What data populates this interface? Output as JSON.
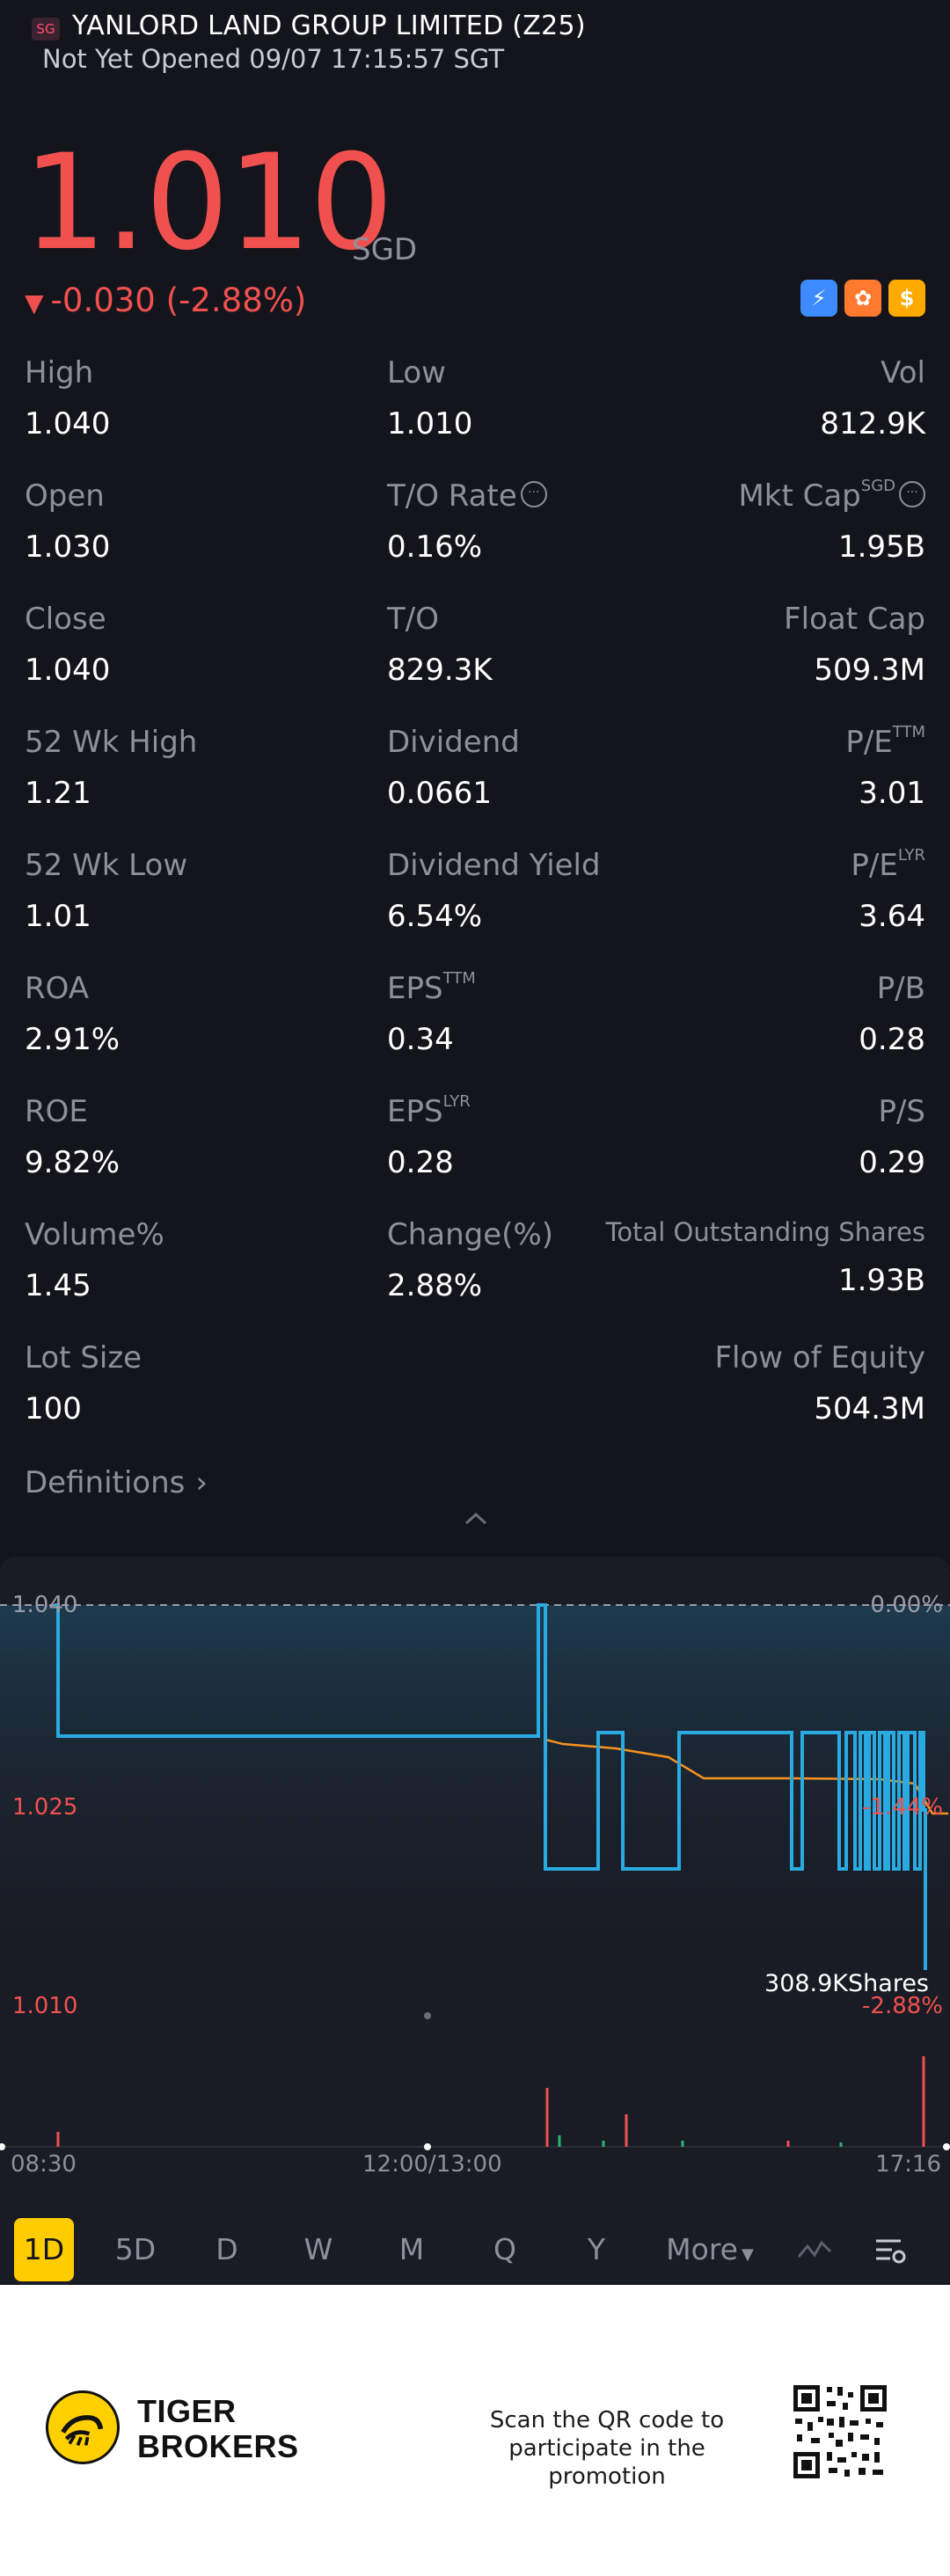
{
  "header": {
    "market_badge": "SG",
    "title": "YANLORD LAND GROUP LIMITED (Z25)",
    "status": "Not Yet Opened 09/07 17:15:57 SGT"
  },
  "quote": {
    "price": "1.010",
    "currency": "SGD",
    "change_arrow": "▼",
    "change": "-0.030 (-2.88%)"
  },
  "quick_icons": [
    {
      "icon": "lightning-level1-icon",
      "glyph": "⚡"
    },
    {
      "icon": "reward-icon",
      "glyph": "✿"
    },
    {
      "icon": "dollar-icon",
      "glyph": "$"
    }
  ],
  "stats": {
    "high": {
      "label": "High",
      "value": "1.040"
    },
    "low": {
      "label": "Low",
      "value": "1.010"
    },
    "vol": {
      "label": "Vol",
      "value": "812.9K"
    },
    "open": {
      "label": "Open",
      "value": "1.030"
    },
    "to_rate": {
      "label": "T/O Rate",
      "value": "0.16%"
    },
    "mkt_cap": {
      "label": "Mkt Cap",
      "sup": "SGD",
      "value": "1.95B"
    },
    "close": {
      "label": "Close",
      "value": "1.040"
    },
    "to": {
      "label": "T/O",
      "value": "829.3K"
    },
    "float_cap": {
      "label": "Float Cap",
      "value": "509.3M"
    },
    "wk52_high": {
      "label": "52 Wk High",
      "value": "1.21"
    },
    "dividend": {
      "label": "Dividend",
      "value": "0.0661"
    },
    "pe_ttm": {
      "label": "P/E",
      "sup": "TTM",
      "value": "3.01"
    },
    "wk52_low": {
      "label": "52 Wk Low",
      "value": "1.01"
    },
    "dividend_yield": {
      "label": "Dividend Yield",
      "value": "6.54%"
    },
    "pe_lyr": {
      "label": "P/E",
      "sup": "LYR",
      "value": "3.64"
    },
    "roa": {
      "label": "ROA",
      "value": "2.91%"
    },
    "eps_ttm": {
      "label": "EPS",
      "sup": "TTM",
      "value": "0.34"
    },
    "pb": {
      "label": "P/B",
      "value": "0.28"
    },
    "roe": {
      "label": "ROE",
      "value": "9.82%"
    },
    "eps_lyr": {
      "label": "EPS",
      "sup": "LYR",
      "value": "0.28"
    },
    "ps": {
      "label": "P/S",
      "value": "0.29"
    },
    "volume_pct": {
      "label": "Volume%",
      "value": "1.45"
    },
    "change_pct": {
      "label": "Change(%)",
      "value": "2.88%"
    },
    "total_shares": {
      "label": "Total Outstanding Shares",
      "value": "1.93B"
    },
    "lot_size": {
      "label": "Lot Size",
      "value": "100"
    },
    "flow_equity": {
      "label": "Flow of Equity",
      "value": "504.3M"
    }
  },
  "definitions": {
    "label": "Definitions",
    "chevron": "›"
  },
  "chart": {
    "y_top": "1.040",
    "y_mid": "1.025",
    "y_bottom": "1.010",
    "pct_top": "0.00%",
    "pct_mid": "-1.44%",
    "pct_bottom": "-2.88%",
    "volume_label": "308.9KShares",
    "x_start": "08:30",
    "x_mid": "12:00/13:00",
    "x_end": "17:16",
    "price_color": "#29aae1",
    "avg_color": "#f7931e",
    "up_color": "#f0514f",
    "down_color": "#2bb673"
  },
  "timeframes": {
    "d1": "1D",
    "d5": "5D",
    "d": "D",
    "w": "W",
    "m": "M",
    "q": "Q",
    "y": "Y",
    "more": "More"
  },
  "footer": {
    "brand_line1": "TIGER",
    "brand_line2": "BROKERS",
    "promo_line1": "Scan the QR code to",
    "promo_line2": "participate in the promotion"
  }
}
